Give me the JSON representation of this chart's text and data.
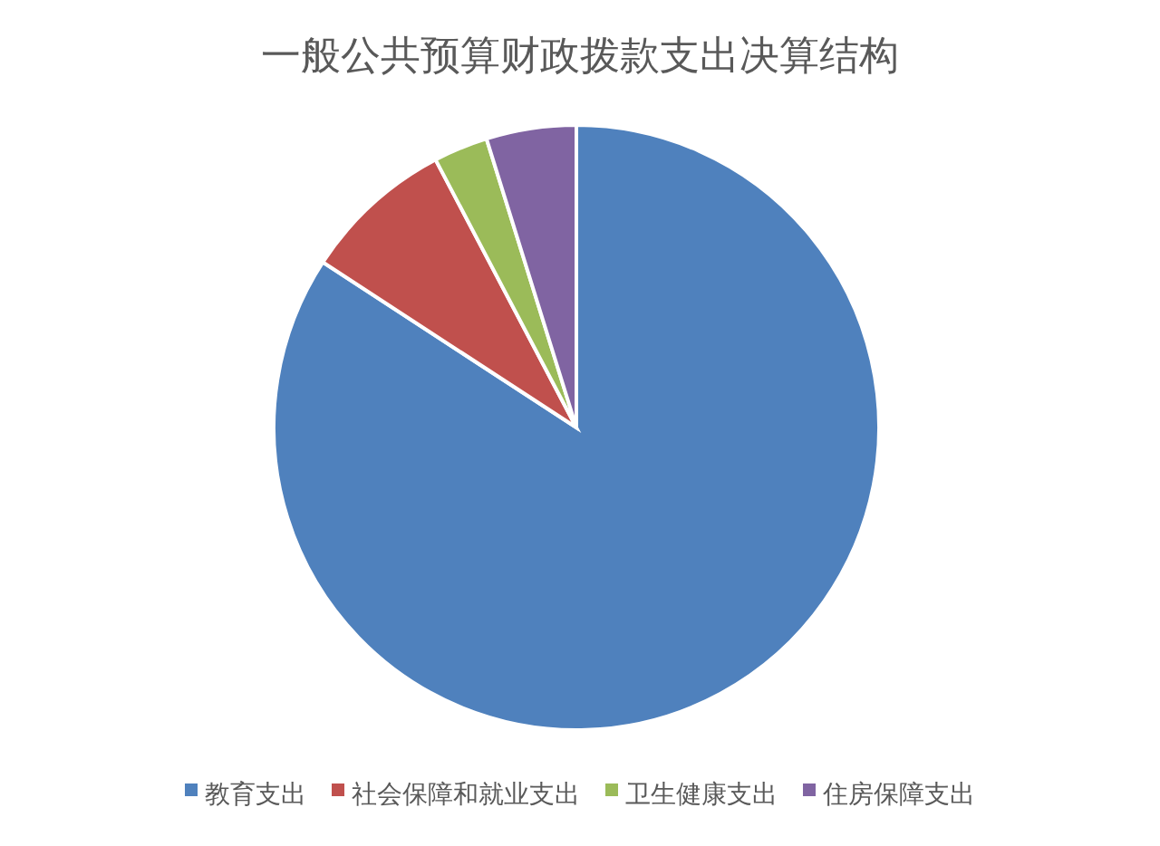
{
  "chart_data": {
    "type": "pie",
    "title": "一般公共预算财政拨款支出决算结构",
    "categories": [
      "教育支出",
      "社会保障和就业支出",
      "卫生健康支出",
      "住房保障支出"
    ],
    "values": [
      84.2,
      8.1,
      2.9,
      4.8
    ],
    "colors": [
      "#4f81bd",
      "#c0504d",
      "#9bbb59",
      "#8064a2"
    ],
    "legend": "bottom"
  }
}
